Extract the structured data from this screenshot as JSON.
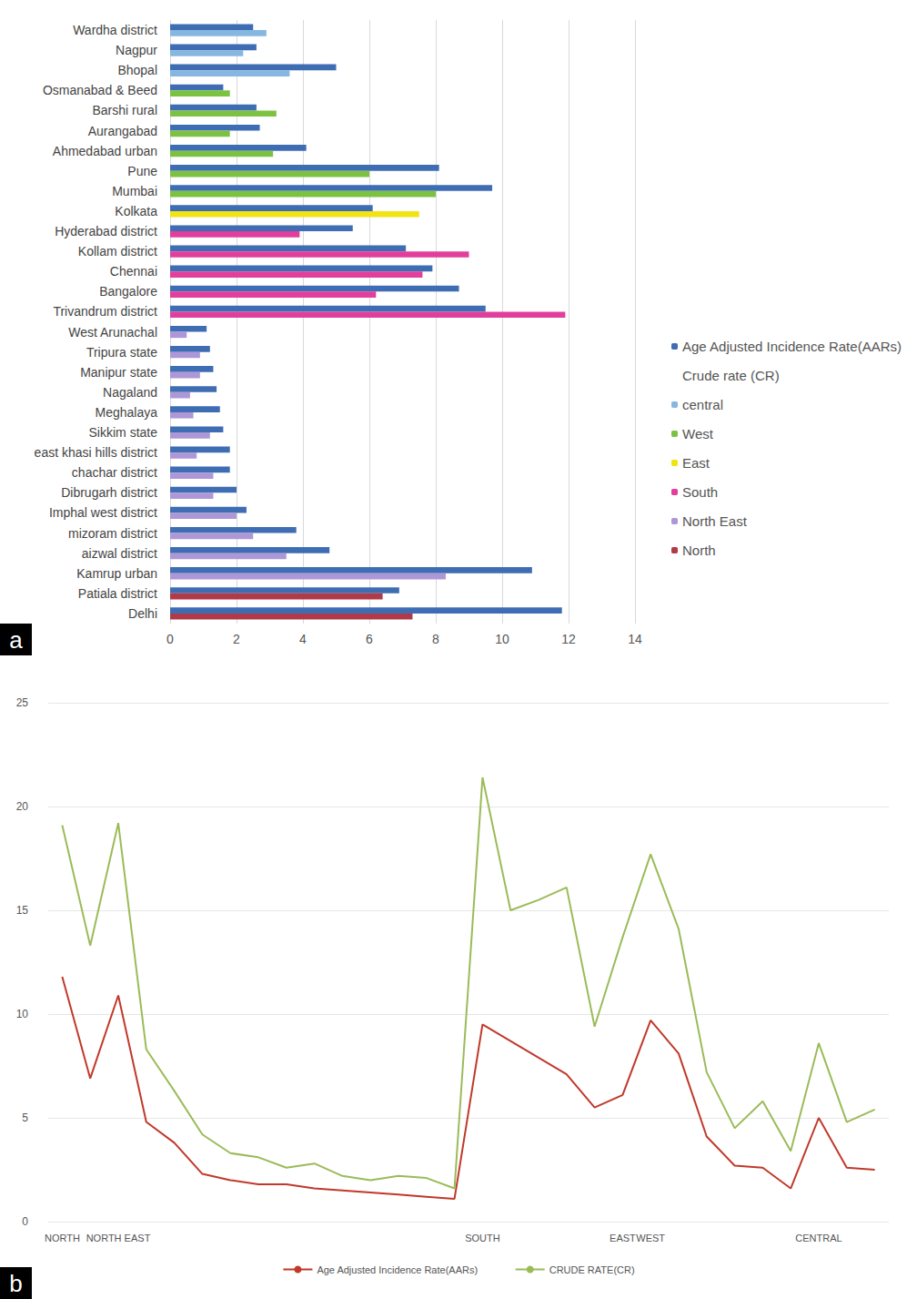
{
  "chart_data": [
    {
      "type": "bar",
      "orientation": "horizontal",
      "panel_label": "a",
      "categories": [
        "Wardha district",
        "Nagpur",
        "Bhopal",
        "Osmanabad & Beed",
        "Barshi rural",
        "Aurangabad",
        "Ahmedabad urban",
        "Pune",
        "Mumbai",
        "Kolkata",
        "Hyderabad district",
        "Kollam district",
        "Chennai",
        "Bangalore",
        "Trivandrum district",
        "West Arunachal",
        "Tripura state",
        "Manipur state",
        "Nagaland",
        "Meghalaya",
        "Sikkim state",
        "east khasi hills district",
        "chachar district",
        "Dibrugarh district",
        "Imphal west district",
        "mizoram district",
        "aizwal district",
        "Kamrup urban",
        "Patiala district",
        "Delhi"
      ],
      "series": [
        {
          "name": "Age Adjusted Incidence Rate(AARs)",
          "color": "#3f6db3",
          "values": [
            2.5,
            2.6,
            5.0,
            1.6,
            2.6,
            2.7,
            4.1,
            8.1,
            9.7,
            6.1,
            5.5,
            7.1,
            7.9,
            8.7,
            9.5,
            1.1,
            1.2,
            1.3,
            1.4,
            1.5,
            1.6,
            1.8,
            1.8,
            2.0,
            2.3,
            3.8,
            4.8,
            10.9,
            6.9,
            11.8
          ]
        },
        {
          "name": "central",
          "color": "#86b7e0",
          "values": [
            2.9,
            2.2,
            3.6,
            null,
            null,
            null,
            null,
            null,
            null,
            null,
            null,
            null,
            null,
            null,
            null,
            null,
            null,
            null,
            null,
            null,
            null,
            null,
            null,
            null,
            null,
            null,
            null,
            null,
            null,
            null
          ]
        },
        {
          "name": "West",
          "color": "#7cc242",
          "values": [
            null,
            null,
            null,
            1.8,
            3.2,
            1.8,
            3.1,
            6.0,
            8.0,
            null,
            null,
            null,
            null,
            null,
            null,
            null,
            null,
            null,
            null,
            null,
            null,
            null,
            null,
            null,
            null,
            null,
            null,
            null,
            null,
            null
          ]
        },
        {
          "name": "East",
          "color": "#f2e313",
          "values": [
            null,
            null,
            null,
            null,
            null,
            null,
            null,
            null,
            null,
            7.5,
            null,
            null,
            null,
            null,
            null,
            null,
            null,
            null,
            null,
            null,
            null,
            null,
            null,
            null,
            null,
            null,
            null,
            null,
            null,
            null
          ]
        },
        {
          "name": "South",
          "color": "#e23e9b",
          "values": [
            null,
            null,
            null,
            null,
            null,
            null,
            null,
            null,
            null,
            null,
            3.9,
            9.0,
            7.6,
            6.2,
            11.9,
            null,
            null,
            null,
            null,
            null,
            null,
            null,
            null,
            null,
            null,
            null,
            null,
            null,
            null,
            null
          ]
        },
        {
          "name": "North East",
          "color": "#ae97d6",
          "values": [
            null,
            null,
            null,
            null,
            null,
            null,
            null,
            null,
            null,
            null,
            null,
            null,
            null,
            null,
            null,
            0.5,
            0.9,
            0.9,
            0.6,
            0.7,
            1.2,
            0.8,
            1.3,
            1.3,
            2.0,
            2.5,
            3.5,
            8.3,
            null,
            null
          ]
        },
        {
          "name": "North",
          "color": "#b03a48",
          "values": [
            null,
            null,
            null,
            null,
            null,
            null,
            null,
            null,
            null,
            null,
            null,
            null,
            null,
            null,
            null,
            null,
            null,
            null,
            null,
            null,
            null,
            null,
            null,
            null,
            null,
            null,
            null,
            null,
            6.4,
            7.3
          ]
        }
      ],
      "legend_title": "Crude rate (CR)",
      "xlim": [
        0,
        14
      ],
      "xticks": [
        0,
        2,
        4,
        6,
        8,
        10,
        12,
        14
      ],
      "grid": true,
      "legend": "right"
    },
    {
      "type": "line",
      "panel_label": "b",
      "categories": [
        "NORTH",
        null,
        "NORTH EAST",
        null,
        null,
        null,
        null,
        null,
        null,
        null,
        null,
        null,
        null,
        null,
        null,
        "SOUTH",
        null,
        null,
        null,
        null,
        "EAST",
        "WEST",
        null,
        null,
        null,
        null,
        null,
        "CENTRAL",
        null,
        null
      ],
      "series": [
        {
          "name": "Age Adjusted Incidence Rate(AARs)",
          "color": "#c0392b",
          "values": [
            11.8,
            6.9,
            10.9,
            4.8,
            3.8,
            2.3,
            2.0,
            1.8,
            1.8,
            1.6,
            1.5,
            1.4,
            1.3,
            1.2,
            1.1,
            9.5,
            8.7,
            7.9,
            7.1,
            5.5,
            6.1,
            9.7,
            8.1,
            4.1,
            2.7,
            2.6,
            1.6,
            5.0,
            2.6,
            2.5
          ]
        },
        {
          "name": "CRUDE RATE(CR)",
          "color": "#9bbb59",
          "values": [
            19.1,
            13.3,
            19.2,
            8.3,
            6.3,
            4.2,
            3.3,
            3.1,
            2.6,
            2.8,
            2.2,
            2.0,
            2.2,
            2.1,
            1.6,
            21.4,
            15.0,
            15.5,
            16.1,
            9.4,
            13.7,
            17.7,
            14.1,
            7.2,
            4.5,
            5.8,
            3.4,
            8.6,
            4.8,
            5.4
          ]
        }
      ],
      "ylim": [
        0,
        25
      ],
      "yticks": [
        0,
        5,
        10,
        15,
        20,
        25
      ],
      "grid": true,
      "legend": "bottom",
      "marker": "none"
    }
  ]
}
